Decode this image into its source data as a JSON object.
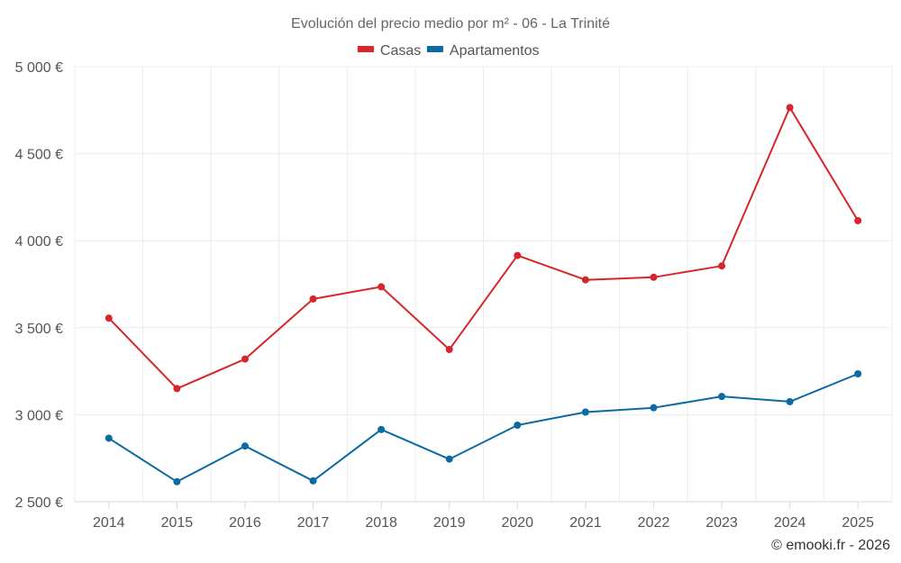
{
  "chart_data": {
    "type": "line",
    "title": "Evolución del precio medio por m² - 06 - La Trinité",
    "xlabel": "",
    "ylabel": "",
    "categories": [
      "2014",
      "2015",
      "2016",
      "2017",
      "2018",
      "2019",
      "2020",
      "2021",
      "2022",
      "2023",
      "2024",
      "2025"
    ],
    "ylim": [
      2500,
      5000
    ],
    "y_ticks": [
      2500,
      3000,
      3500,
      4000,
      4500,
      5000
    ],
    "y_tick_labels": [
      "2 500 €",
      "3 000 €",
      "3 500 €",
      "4 000 €",
      "4 500 €",
      "5 000 €"
    ],
    "grid": true,
    "legend_position": "top-center",
    "series": [
      {
        "name": "Casas",
        "color": "#d7262b",
        "values": [
          3555,
          3150,
          3320,
          3665,
          3735,
          3375,
          3915,
          3775,
          3790,
          3855,
          4765,
          4115
        ]
      },
      {
        "name": "Apartamentos",
        "color": "#0b6aa2",
        "values": [
          2865,
          2615,
          2820,
          2620,
          2915,
          2745,
          2940,
          3015,
          3040,
          3105,
          3075,
          3235
        ]
      }
    ]
  },
  "credit": "© emooki.fr - 2026"
}
